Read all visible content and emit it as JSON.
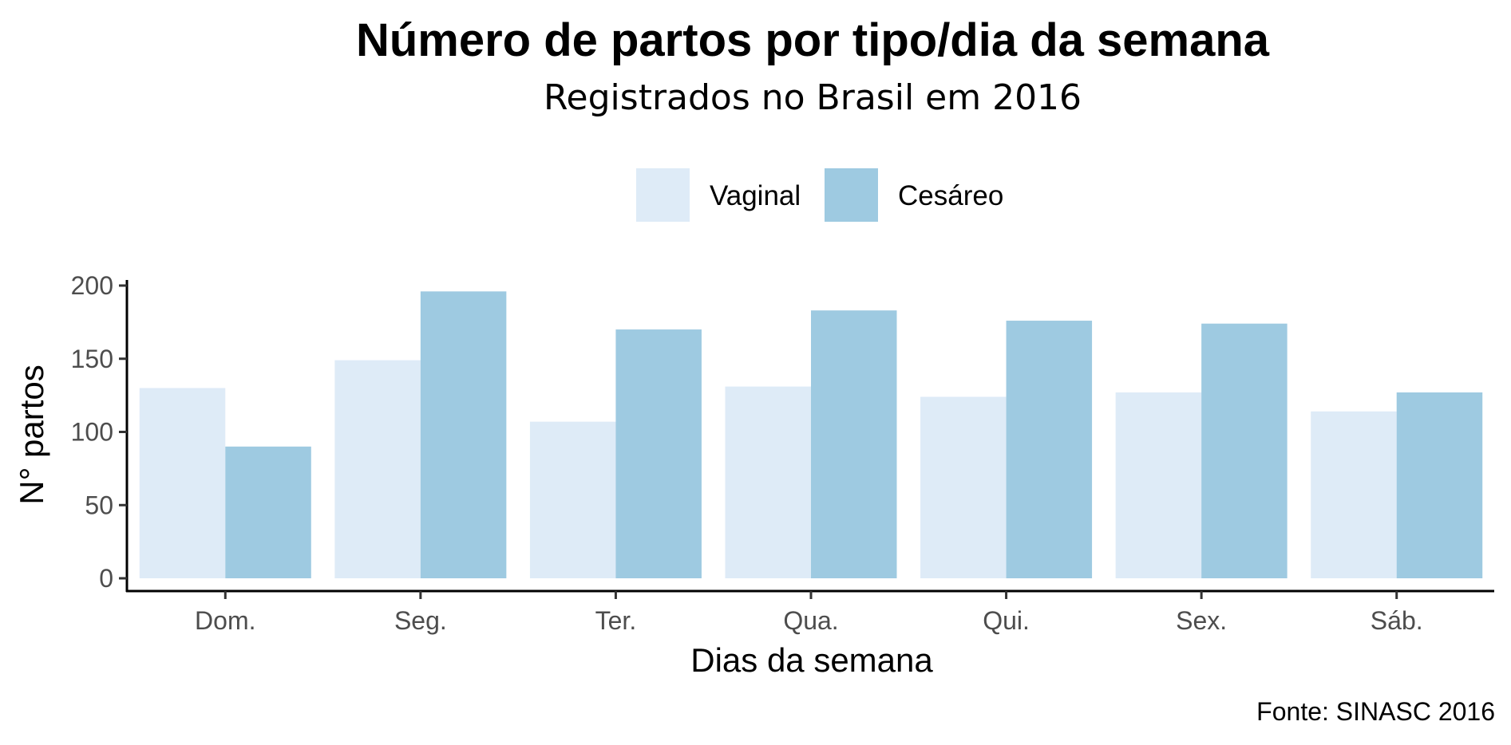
{
  "chart_data": {
    "type": "bar",
    "title": "Número de partos por tipo/dia da semana",
    "subtitle": "Registrados no Brasil em 2016",
    "xlabel": "Dias da semana",
    "ylabel": "N° partos",
    "caption": "Fonte: SINASC 2016",
    "categories": [
      "Dom.",
      "Seg.",
      "Ter.",
      "Qua.",
      "Qui.",
      "Sex.",
      "Sáb."
    ],
    "series": [
      {
        "name": "Vaginal",
        "color": "#deebf7",
        "values": [
          130,
          149,
          107,
          131,
          124,
          127,
          114
        ]
      },
      {
        "name": "Cesáreo",
        "color": "#9ecae1",
        "values": [
          90,
          196,
          170,
          183,
          176,
          174,
          127
        ]
      }
    ],
    "ylim": [
      0,
      205
    ],
    "yticks": [
      0,
      50,
      100,
      150,
      200
    ],
    "grid": false,
    "legend_position": "top"
  }
}
